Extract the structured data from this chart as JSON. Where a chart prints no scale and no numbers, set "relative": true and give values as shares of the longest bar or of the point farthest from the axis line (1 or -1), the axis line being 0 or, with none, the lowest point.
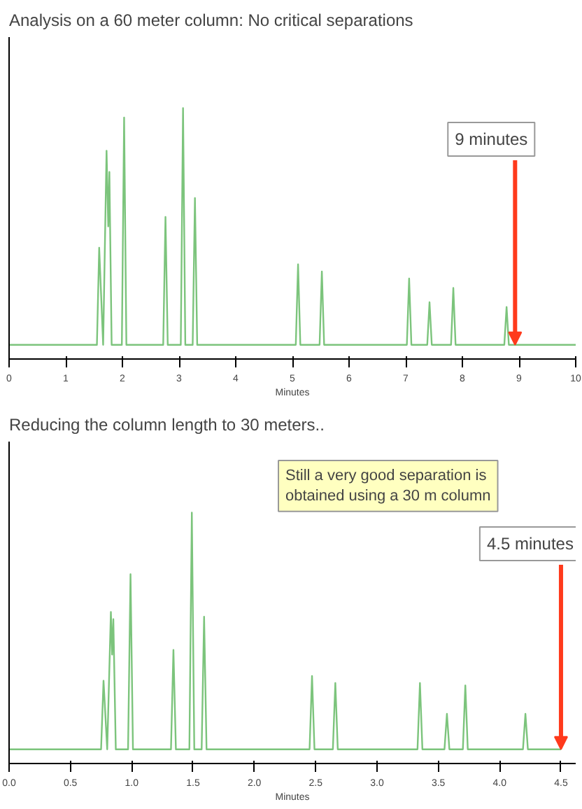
{
  "chart_data": [
    {
      "type": "line",
      "title": "Analysis on a 60 meter column: No critical separations",
      "xlabel": "Minutes",
      "relative": true,
      "xlim": [
        0,
        10
      ],
      "xticks": [
        0,
        1,
        2,
        3,
        4,
        5,
        6,
        7,
        8,
        9,
        10
      ],
      "grid": false,
      "marker": "none",
      "line_style": "solid",
      "tick_labels": "x",
      "annotations": [
        {
          "text": "9 minutes",
          "x": 8.93,
          "y": 0
        }
      ],
      "series": [
        {
          "color": "#7cc47c",
          "x": [
            0,
            1.55,
            1.59,
            1.66,
            1.72,
            1.75,
            1.77,
            1.81,
            1.99,
            2.03,
            2.07,
            2.72,
            2.76,
            2.8,
            3.03,
            3.07,
            3.11,
            3.24,
            3.28,
            3.32,
            5.06,
            5.1,
            5.14,
            5.48,
            5.52,
            5.56,
            7.02,
            7.06,
            7.1,
            7.38,
            7.42,
            7.46,
            7.8,
            7.84,
            7.88,
            8.74,
            8.78,
            8.82,
            10
          ],
          "values": [
            0,
            0,
            0.41,
            0,
            0.82,
            0.5,
            0.73,
            0,
            0,
            0.96,
            0,
            0,
            0.54,
            0,
            0,
            1,
            0,
            0,
            0.62,
            0,
            0,
            0.34,
            0,
            0,
            0.31,
            0,
            0,
            0.28,
            0,
            0,
            0.18,
            0,
            0,
            0.24,
            0,
            0,
            0.16,
            0,
            0
          ]
        }
      ]
    },
    {
      "type": "line",
      "title": "Reducing the column length to 30 meters..",
      "xlabel": "Minutes",
      "relative": true,
      "xlim": [
        0,
        4.62
      ],
      "xticks": [
        {
          "value": 0,
          "label": "0.0"
        },
        0.5,
        {
          "value": 1,
          "label": "1.0"
        },
        1.5,
        {
          "value": 2,
          "label": "2.0"
        },
        2.5,
        {
          "value": 3,
          "label": "3.0"
        },
        3.5,
        {
          "value": 4,
          "label": "4.0"
        },
        4.5
      ],
      "grid": false,
      "marker": "none",
      "line_style": "solid",
      "tick_labels": "x",
      "annotations": [
        "Still a very good separation is\nobtained using a 30 m column",
        {
          "text": "4.5 minutes",
          "x": 4.5,
          "y": 0
        }
      ],
      "series": [
        {
          "color": "#7cc47c",
          "x": [
            0,
            0.75,
            0.77,
            0.8,
            0.83,
            0.84,
            0.85,
            0.87,
            0.97,
            0.99,
            1.01,
            1.32,
            1.34,
            1.36,
            1.47,
            1.49,
            1.51,
            1.57,
            1.59,
            1.61,
            2.45,
            2.47,
            2.49,
            2.64,
            2.66,
            2.68,
            3.33,
            3.35,
            3.37,
            3.55,
            3.57,
            3.59,
            3.7,
            3.72,
            3.74,
            4.19,
            4.21,
            4.23,
            4.5
          ],
          "values": [
            0,
            0,
            0.29,
            0,
            0.58,
            0.4,
            0.55,
            0,
            0,
            0.74,
            0,
            0,
            0.42,
            0,
            0,
            1,
            0,
            0,
            0.56,
            0,
            0,
            0.31,
            0,
            0,
            0.28,
            0,
            0,
            0.28,
            0,
            0,
            0.15,
            0,
            0,
            0.27,
            0,
            0,
            0.15,
            0,
            0
          ]
        }
      ]
    }
  ]
}
